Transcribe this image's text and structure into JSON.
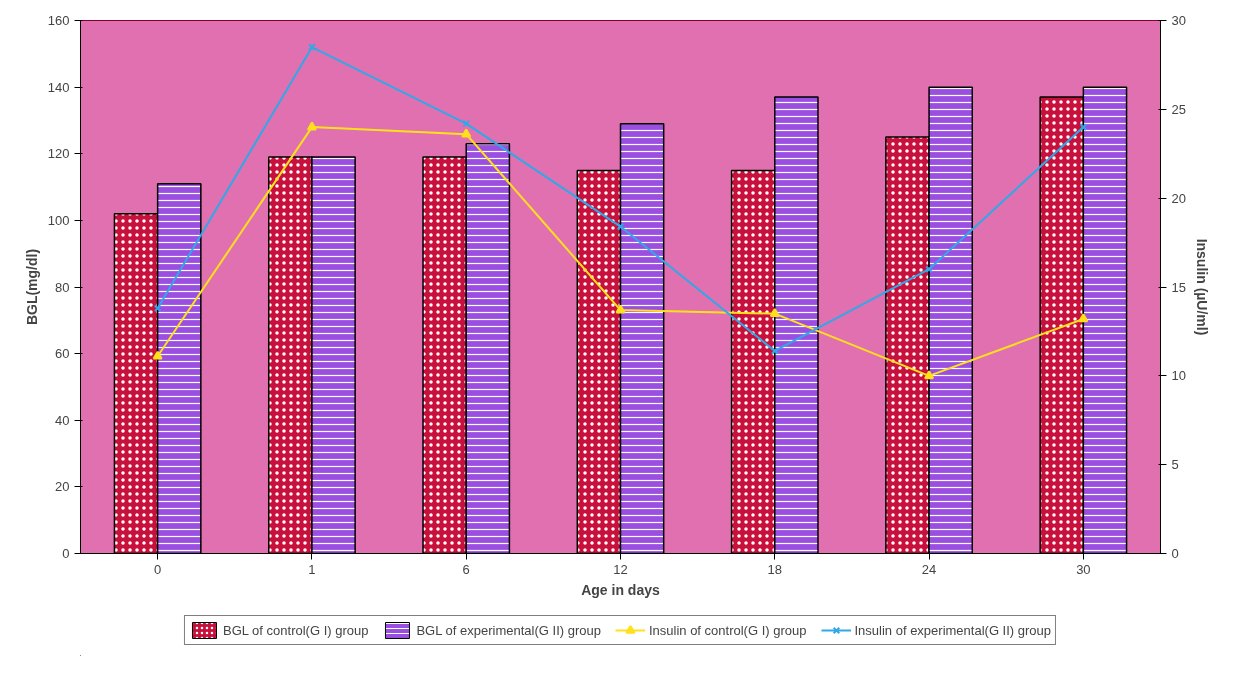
{
  "chart_data": {
    "type": "bar",
    "xlabel": "Age in days",
    "ylabel": "BGL(mg/dl)",
    "y2label": "Insulin (µU/ml)",
    "categories": [
      "0",
      "1",
      "6",
      "12",
      "18",
      "24",
      "30"
    ],
    "ylim": [
      0,
      160
    ],
    "yticks": [
      0,
      20,
      40,
      60,
      80,
      100,
      120,
      140,
      160
    ],
    "y2lim": [
      0,
      30
    ],
    "y2ticks": [
      0,
      5,
      10,
      15,
      20,
      25,
      30
    ],
    "grid": false,
    "legend": "bottom",
    "series": [
      {
        "name": "BGL of control(G I) group",
        "color": "#c8103c",
        "values": [
          102,
          119,
          119,
          115,
          115,
          125,
          137
        ]
      },
      {
        "name": "BGL of experimental(G II) group",
        "color": "#9b4fe0",
        "values": [
          111,
          119,
          123,
          129,
          137,
          140,
          140
        ]
      },
      {
        "name": "Insulin of control(G I) group",
        "type": "line",
        "axis": "y2",
        "marker": "triangle",
        "color": "#ffe01a",
        "values": [
          11.1,
          24.0,
          23.6,
          13.7,
          13.5,
          10.0,
          13.2
        ]
      },
      {
        "name": "Insulin of experimental(G II) group",
        "type": "line",
        "axis": "y2",
        "marker": "cross",
        "color": "#30a8e8",
        "values": [
          13.8,
          28.5,
          24.2,
          18.4,
          11.4,
          16.0,
          24.0
        ]
      }
    ]
  }
}
